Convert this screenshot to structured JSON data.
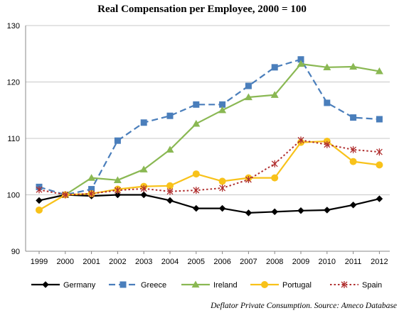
{
  "chart_data": {
    "type": "line",
    "title": "Real Compensation per Employee, 2000 = 100",
    "xlabel": "",
    "ylabel": "",
    "x": [
      "1999",
      "2000",
      "2001",
      "2002",
      "2003",
      "2004",
      "2005",
      "2006",
      "2007",
      "2008",
      "2009",
      "2010",
      "2011",
      "2012"
    ],
    "ylim": [
      90,
      130
    ],
    "yticks": [
      "90",
      "100",
      "110",
      "120",
      "130"
    ],
    "grid": "horizontal",
    "legend_position": "bottom",
    "series": [
      {
        "name": "Germany",
        "color": "#000000",
        "line_style": "solid",
        "marker": "diamond",
        "values": [
          99.0,
          100.0,
          99.8,
          100.0,
          100.0,
          99.0,
          97.6,
          97.6,
          96.8,
          97.0,
          97.2,
          97.3,
          98.2,
          99.3
        ]
      },
      {
        "name": "Greece",
        "color": "#4a7ebb",
        "line_style": "dashed",
        "marker": "square",
        "values": [
          101.4,
          100.0,
          101.0,
          109.6,
          112.8,
          114.0,
          116.0,
          116.0,
          119.3,
          122.6,
          124.0,
          116.3,
          113.7,
          113.4
        ]
      },
      {
        "name": "Ireland",
        "color": "#8ab853",
        "line_style": "solid",
        "marker": "triangle",
        "values": [
          null,
          100.0,
          103.0,
          102.6,
          104.5,
          108.0,
          112.6,
          115.0,
          117.3,
          117.7,
          123.2,
          122.6,
          122.7,
          121.9
        ]
      },
      {
        "name": "Portugal",
        "color": "#f8c21a",
        "line_style": "solid",
        "marker": "circle",
        "values": [
          97.3,
          100.0,
          100.2,
          101.0,
          101.5,
          101.6,
          103.7,
          102.4,
          103.0,
          103.0,
          109.3,
          109.5,
          105.9,
          105.3
        ]
      },
      {
        "name": "Spain",
        "color": "#b03030",
        "line_style": "dotted",
        "marker": "star",
        "values": [
          100.9,
          100.0,
          100.2,
          100.8,
          101.1,
          100.6,
          100.8,
          101.2,
          102.7,
          105.5,
          109.7,
          108.9,
          108.0,
          107.6
        ]
      }
    ],
    "annotations": [
      "Deflator Private Consumption. Source: Ameco Database"
    ]
  }
}
